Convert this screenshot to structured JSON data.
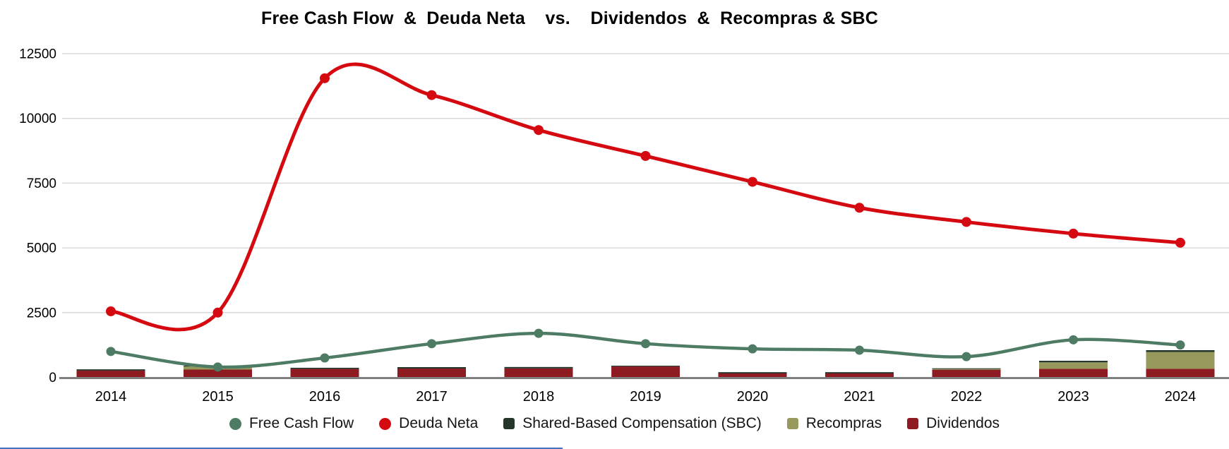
{
  "title": "Free Cash Flow  &  Deuda Neta    vs.    Dividendos  &  Recompras & SBC",
  "colors": {
    "free_cash_flow": "#4e7b64",
    "deuda_neta": "#d40a10",
    "sbc": "#24362c",
    "recompras": "#97985c",
    "dividendos": "#8e1b22",
    "gridline": "#d9d9d9",
    "axis_line": "#7f7f7f",
    "background": "#ffffff",
    "bottom_edge_blue": "#4472c4"
  },
  "chart_data": {
    "type": "combo-line-stacked-bar",
    "x": [
      2014,
      2015,
      2016,
      2017,
      2018,
      2019,
      2020,
      2021,
      2022,
      2023,
      2024
    ],
    "series": [
      {
        "name": "Free Cash Flow",
        "type": "line",
        "color": "#4e7b64",
        "values": [
          1000,
          400,
          750,
          1300,
          1700,
          1300,
          1100,
          1050,
          800,
          1450,
          1250
        ]
      },
      {
        "name": "Deuda Neta",
        "type": "line",
        "color": "#d40a10",
        "values": [
          2550,
          2500,
          11550,
          10900,
          9550,
          8550,
          7550,
          6550,
          6000,
          5550,
          5200
        ]
      },
      {
        "name": "Shared-Based Compensation (SBC)",
        "type": "bar",
        "color": "#24362c",
        "values": [
          50,
          30,
          45,
          55,
          55,
          30,
          50,
          50,
          25,
          60,
          70
        ]
      },
      {
        "name": "Recompras",
        "type": "bar",
        "color": "#97985c",
        "values": [
          0,
          120,
          0,
          0,
          0,
          0,
          0,
          0,
          30,
          250,
          650
        ]
      },
      {
        "name": "Dividendos",
        "type": "bar",
        "color": "#8e1b22",
        "values": [
          260,
          300,
          325,
          340,
          345,
          420,
          150,
          150,
          295,
          330,
          330
        ]
      }
    ],
    "stack_order_bottom_to_top": [
      "Dividendos",
      "Recompras",
      "Shared-Based Compensation (SBC)"
    ],
    "ylim": [
      0,
      12500
    ],
    "yticks": [
      0,
      2500,
      5000,
      7500,
      10000,
      12500
    ],
    "grid": true,
    "line_smoothing": "catmull-rom",
    "legend_position": "bottom"
  },
  "legend": [
    {
      "label": "Free Cash Flow",
      "color": "#4e7b64",
      "shape": "circle"
    },
    {
      "label": "Deuda Neta",
      "color": "#d40a10",
      "shape": "circle"
    },
    {
      "label": "Shared-Based Compensation (SBC)",
      "color": "#24362c",
      "shape": "square"
    },
    {
      "label": "Recompras",
      "color": "#97985c",
      "shape": "square"
    },
    {
      "label": "Dividendos",
      "color": "#8e1b22",
      "shape": "square"
    }
  ]
}
